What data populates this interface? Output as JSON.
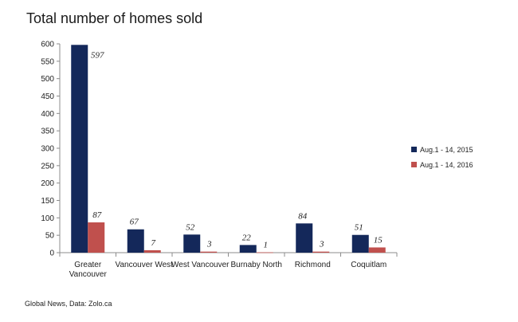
{
  "chart_data": {
    "type": "bar",
    "title": "Total number of homes sold",
    "categories": [
      [
        "Greater",
        "Vancouver"
      ],
      [
        "Vancouver West"
      ],
      [
        "West Vancouver"
      ],
      [
        "Burnaby North"
      ],
      [
        "Richmond"
      ],
      [
        "Coquitlam"
      ]
    ],
    "series": [
      {
        "name": "Aug.1 - 14, 2015",
        "color": "#14285a",
        "values": [
          597,
          67,
          52,
          22,
          84,
          51
        ],
        "labels": [
          "597",
          "67",
          "52",
          "22",
          "84",
          "51"
        ]
      },
      {
        "name": "Aug.1 - 14, 2016",
        "color": "#c0504d",
        "values": [
          87,
          7,
          3,
          1,
          3,
          15
        ],
        "labels": [
          "87",
          "7",
          "3",
          "1",
          "3",
          "15"
        ]
      }
    ],
    "ylim": [
      0,
      600
    ],
    "yticks": [
      "0",
      "50",
      "100",
      "150",
      "200",
      "250",
      "300",
      "350",
      "400",
      "450",
      "500",
      "550",
      "600"
    ],
    "xlabel": "",
    "ylabel": "",
    "grid": false,
    "legend_position": "right"
  },
  "source": "Global News, Data: Zolo.ca"
}
